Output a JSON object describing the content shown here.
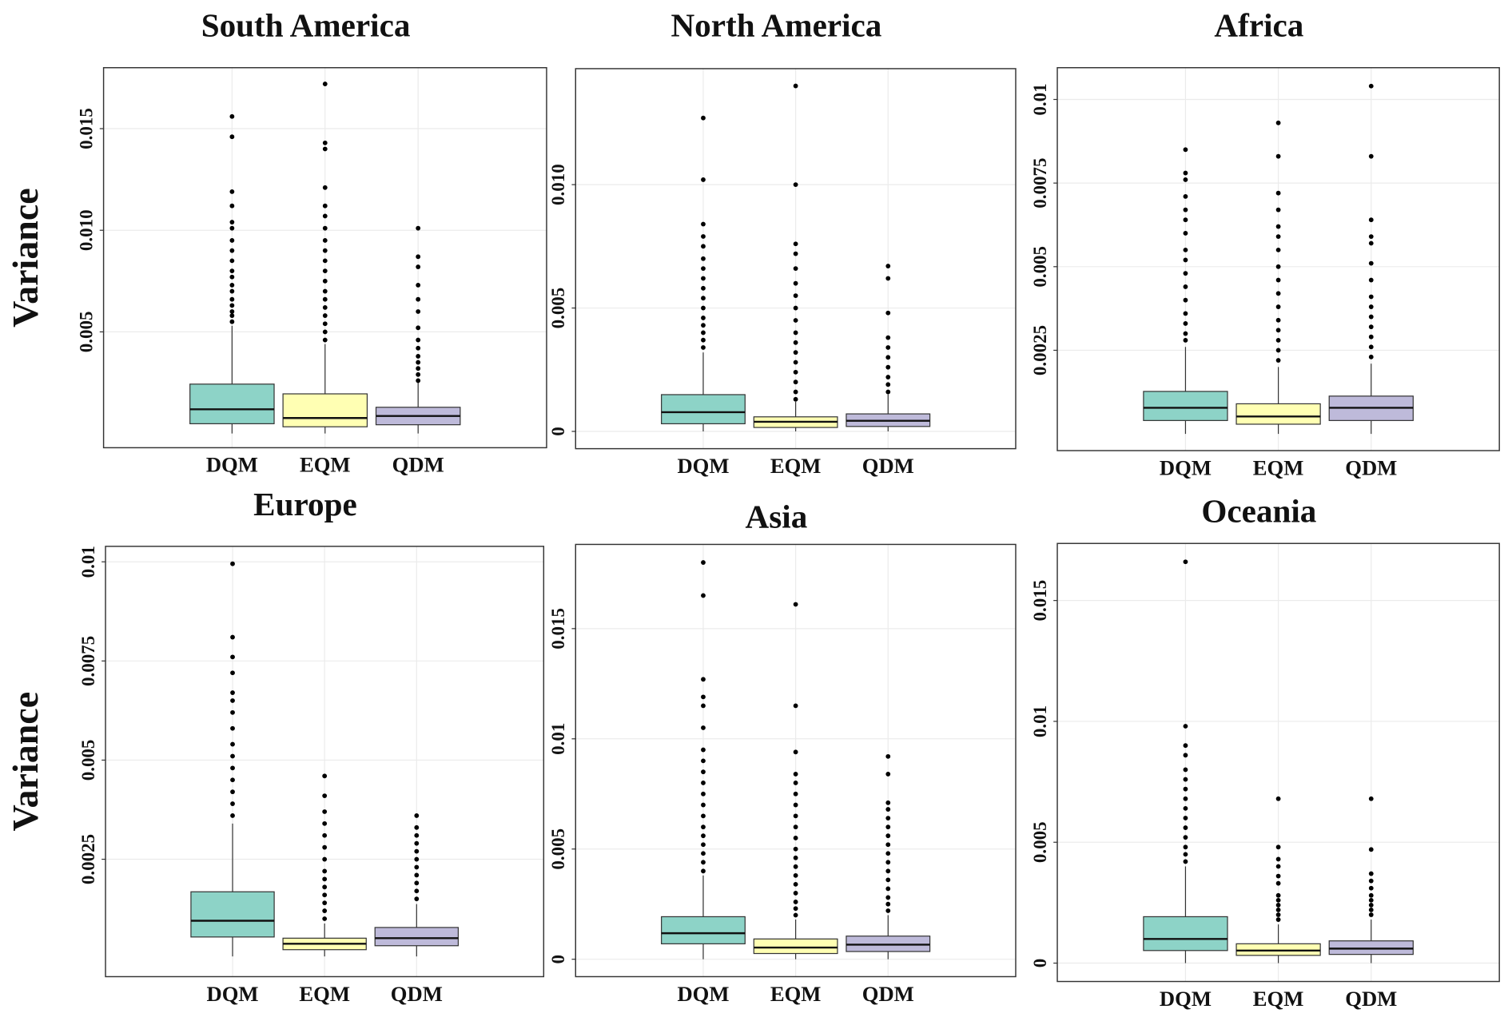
{
  "chart_data": [
    {
      "type": "box",
      "title": "South America",
      "y_label": "Variance",
      "ylim": [
        -0.0007,
        0.018
      ],
      "yticks": [
        0.005,
        {
          "value": 0.01,
          "label": "0.010"
        },
        0.015
      ],
      "grid": true,
      "boxes": [
        {
          "category": "DQM",
          "color": "#8dd3c7",
          "low": 0,
          "q1": 0.00048,
          "median": 0.00119,
          "q3": 0.00243,
          "high": 0.0053,
          "outliers": [
            0.0055,
            0.0058,
            0.006,
            0.0063,
            0.0066,
            0.007,
            0.0073,
            0.0077,
            0.008,
            0.0085,
            0.009,
            0.0095,
            0.0101,
            0.0104,
            0.0112,
            0.0119,
            0.0146,
            0.0156
          ]
        },
        {
          "category": "EQM",
          "color": "#ffffb3",
          "low": 0,
          "q1": 0.00033,
          "median": 0.00076,
          "q3": 0.00195,
          "high": 0.0044,
          "outliers": [
            0.0046,
            0.005,
            0.0054,
            0.0058,
            0.0062,
            0.0066,
            0.007,
            0.0075,
            0.008,
            0.0085,
            0.009,
            0.0095,
            0.0101,
            0.0107,
            0.0112,
            0.0121,
            0.014,
            0.0143,
            0.0172
          ]
        },
        {
          "category": "QDM",
          "color": "#bebada",
          "low": 0,
          "q1": 0.00043,
          "median": 0.00086,
          "q3": 0.00129,
          "high": 0.0025,
          "outliers": [
            0.0026,
            0.0029,
            0.0032,
            0.0035,
            0.0038,
            0.0042,
            0.0046,
            0.0052,
            0.006,
            0.0066,
            0.0073,
            0.0082,
            0.0087,
            0.0101
          ]
        }
      ]
    },
    {
      "type": "box",
      "title": "North America",
      "ylim": [
        -0.0007,
        0.0147
      ],
      "yticks": [
        0,
        0.005,
        {
          "value": 0.01,
          "label": "0.010"
        }
      ],
      "grid": true,
      "boxes": [
        {
          "category": "DQM",
          "color": "#8dd3c7",
          "low": 0,
          "q1": 0.00031,
          "median": 0.00078,
          "q3": 0.00149,
          "high": 0.0032,
          "outliers": [
            0.0034,
            0.0037,
            0.004,
            0.0043,
            0.0046,
            0.005,
            0.0054,
            0.0058,
            0.0062,
            0.0066,
            0.007,
            0.0075,
            0.0079,
            0.0084,
            0.0102,
            0.0127
          ]
        },
        {
          "category": "EQM",
          "color": "#ffffb3",
          "low": 0,
          "q1": 0.00016,
          "median": 0.00039,
          "q3": 0.00059,
          "high": 0.0012,
          "outliers": [
            0.0013,
            0.0016,
            0.002,
            0.0024,
            0.0028,
            0.0032,
            0.0036,
            0.004,
            0.0045,
            0.005,
            0.0055,
            0.006,
            0.0066,
            0.0072,
            0.0076,
            0.01,
            0.014
          ]
        },
        {
          "category": "QDM",
          "color": "#bebada",
          "low": 0,
          "q1": 0.0002,
          "median": 0.00043,
          "q3": 0.00071,
          "high": 0.0015,
          "outliers": [
            0.0016,
            0.0019,
            0.0022,
            0.0026,
            0.003,
            0.0034,
            0.0038,
            0.0048,
            0.0062,
            0.0067
          ]
        }
      ]
    },
    {
      "type": "box",
      "title": "Africa",
      "ylim": [
        -0.0005,
        0.01095
      ],
      "yticks": [
        0.0025,
        0.005,
        0.0075,
        0.01
      ],
      "grid": true,
      "boxes": [
        {
          "category": "DQM",
          "color": "#8dd3c7",
          "low": 0,
          "q1": 0.0004,
          "median": 0.00078,
          "q3": 0.00127,
          "high": 0.0026,
          "outliers": [
            0.0028,
            0.003,
            0.0033,
            0.0036,
            0.004,
            0.0044,
            0.0048,
            0.0052,
            0.0055,
            0.006,
            0.0064,
            0.0067,
            0.0071,
            0.0076,
            0.0078,
            0.0085
          ]
        },
        {
          "category": "EQM",
          "color": "#ffffb3",
          "low": 0,
          "q1": 0.00029,
          "median": 0.00052,
          "q3": 0.0009,
          "high": 0.002,
          "outliers": [
            0.0022,
            0.0025,
            0.0028,
            0.0031,
            0.0034,
            0.0038,
            0.0042,
            0.0046,
            0.005,
            0.0055,
            0.0059,
            0.0062,
            0.0067,
            0.0072,
            0.0083,
            0.0093
          ]
        },
        {
          "category": "QDM",
          "color": "#bebada",
          "low": 0,
          "q1": 0.0004,
          "median": 0.00078,
          "q3": 0.00113,
          "high": 0.0021,
          "outliers": [
            0.0023,
            0.0026,
            0.0029,
            0.0032,
            0.0035,
            0.0038,
            0.0041,
            0.0046,
            0.0051,
            0.0057,
            0.0059,
            0.0064,
            0.0083,
            0.0104
          ]
        }
      ]
    },
    {
      "type": "box",
      "title": "Europe",
      "y_label": "Variance",
      "ylim": [
        -0.00046,
        0.01039
      ],
      "yticks": [
        0.0025,
        0.005,
        0.0075,
        0.01
      ],
      "grid": true,
      "boxes": [
        {
          "category": "DQM",
          "color": "#8dd3c7",
          "low": 5e-05,
          "q1": 0.00054,
          "median": 0.00095,
          "q3": 0.00168,
          "high": 0.0034,
          "outliers": [
            0.0036,
            0.0039,
            0.0042,
            0.0045,
            0.0048,
            0.0051,
            0.0054,
            0.0058,
            0.0062,
            0.0065,
            0.0067,
            0.0072,
            0.0076,
            0.0081,
            0.00995
          ]
        },
        {
          "category": "EQM",
          "color": "#ffffb3",
          "low": 5e-05,
          "q1": 0.00022,
          "median": 0.00037,
          "q3": 0.00051,
          "high": 0.00088,
          "outliers": [
            0.001,
            0.0012,
            0.0014,
            0.0016,
            0.0018,
            0.002,
            0.0022,
            0.0025,
            0.0028,
            0.0031,
            0.0034,
            0.0037,
            0.0041,
            0.0046
          ]
        },
        {
          "category": "QDM",
          "color": "#bebada",
          "low": 5e-05,
          "q1": 0.00032,
          "median": 0.00051,
          "q3": 0.00078,
          "high": 0.00137,
          "outliers": [
            0.0015,
            0.0017,
            0.0019,
            0.0021,
            0.0023,
            0.0025,
            0.0027,
            0.0029,
            0.0031,
            0.0033,
            0.0036
          ]
        }
      ]
    },
    {
      "type": "box",
      "title": "Asia",
      "ylim": [
        -0.00079,
        0.01882
      ],
      "yticks": [
        0,
        0.005,
        0.01,
        0.015
      ],
      "grid": true,
      "boxes": [
        {
          "category": "DQM",
          "color": "#8dd3c7",
          "low": 0,
          "q1": 0.0007,
          "median": 0.00118,
          "q3": 0.00193,
          "high": 0.0038,
          "outliers": [
            0.004,
            0.0044,
            0.0048,
            0.0052,
            0.0056,
            0.006,
            0.0065,
            0.007,
            0.0075,
            0.008,
            0.0085,
            0.009,
            0.0095,
            0.0105,
            0.0115,
            0.0119,
            0.0127,
            0.0165,
            0.018
          ]
        },
        {
          "category": "EQM",
          "color": "#ffffb3",
          "low": 0,
          "q1": 0.00026,
          "median": 0.00053,
          "q3": 0.00092,
          "high": 0.0018,
          "outliers": [
            0.002,
            0.0023,
            0.0026,
            0.003,
            0.0034,
            0.0038,
            0.0042,
            0.0046,
            0.005,
            0.0055,
            0.006,
            0.0065,
            0.007,
            0.0075,
            0.008,
            0.0084,
            0.0094,
            0.0115,
            0.0161
          ]
        },
        {
          "category": "QDM",
          "color": "#bebada",
          "low": 0,
          "q1": 0.00035,
          "median": 0.00066,
          "q3": 0.00105,
          "high": 0.002,
          "outliers": [
            0.0022,
            0.0025,
            0.0028,
            0.0032,
            0.0036,
            0.004,
            0.0044,
            0.0048,
            0.0052,
            0.0056,
            0.006,
            0.0064,
            0.0068,
            0.0071,
            0.0084,
            0.0092
          ]
        }
      ]
    },
    {
      "type": "box",
      "title": "Oceania",
      "ylim": [
        -0.00076,
        0.01736
      ],
      "yticks": [
        0,
        0.005,
        0.01,
        0.015
      ],
      "grid": true,
      "boxes": [
        {
          "category": "DQM",
          "color": "#8dd3c7",
          "low": 0,
          "q1": 0.00052,
          "median": 0.001,
          "q3": 0.00192,
          "high": 0.004,
          "outliers": [
            0.0042,
            0.0045,
            0.0048,
            0.0052,
            0.0056,
            0.006,
            0.0064,
            0.0068,
            0.0072,
            0.0076,
            0.008,
            0.0086,
            0.009,
            0.0098,
            0.0166
          ]
        },
        {
          "category": "EQM",
          "color": "#ffffb3",
          "low": 0,
          "q1": 0.00032,
          "median": 0.00052,
          "q3": 0.0008,
          "high": 0.0016,
          "outliers": [
            0.0018,
            0.002,
            0.0022,
            0.0024,
            0.0026,
            0.0028,
            0.0033,
            0.0036,
            0.004,
            0.0043,
            0.0048,
            0.0068
          ]
        },
        {
          "category": "QDM",
          "color": "#bebada",
          "low": 0,
          "q1": 0.00036,
          "median": 0.0006,
          "q3": 0.00092,
          "high": 0.0018,
          "outliers": [
            0.002,
            0.0022,
            0.0024,
            0.0026,
            0.0028,
            0.0031,
            0.0034,
            0.0037,
            0.0047,
            0.0068
          ]
        }
      ]
    }
  ]
}
